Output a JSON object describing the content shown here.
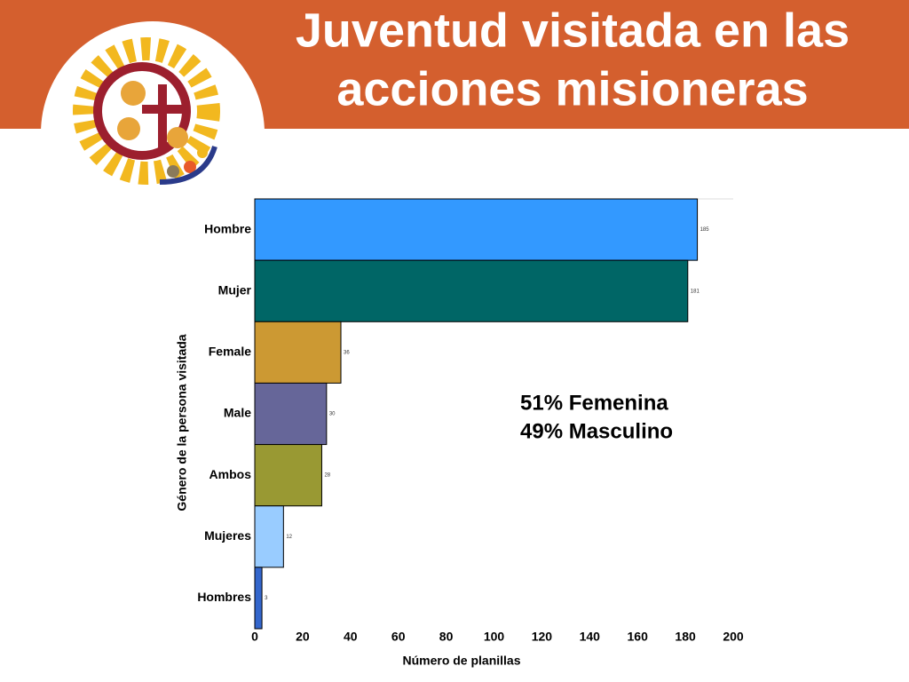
{
  "chart_data": {
    "type": "bar",
    "orientation": "horizontal",
    "title_lines": [
      "Juventud visitada en las",
      "acciones misioneras"
    ],
    "annotations": [
      "51% Femenina",
      "49% Masculino"
    ],
    "y_label": "Género de la persona visitada",
    "x_label": "Número de planillas",
    "categories": [
      "Hombre",
      "Mujer",
      "Female",
      "Male",
      "Ambos",
      "Mujeres",
      "Hombres"
    ],
    "values": [
      185,
      181,
      36,
      30,
      28,
      12,
      3
    ],
    "colors": [
      "#3399ff",
      "#006666",
      "#cc9933",
      "#666699",
      "#999933",
      "#99ccff",
      "#3366cc"
    ],
    "xlim": [
      0,
      200
    ],
    "xticks": [
      0,
      20,
      40,
      60,
      80,
      100,
      120,
      140,
      160,
      180,
      200
    ]
  }
}
